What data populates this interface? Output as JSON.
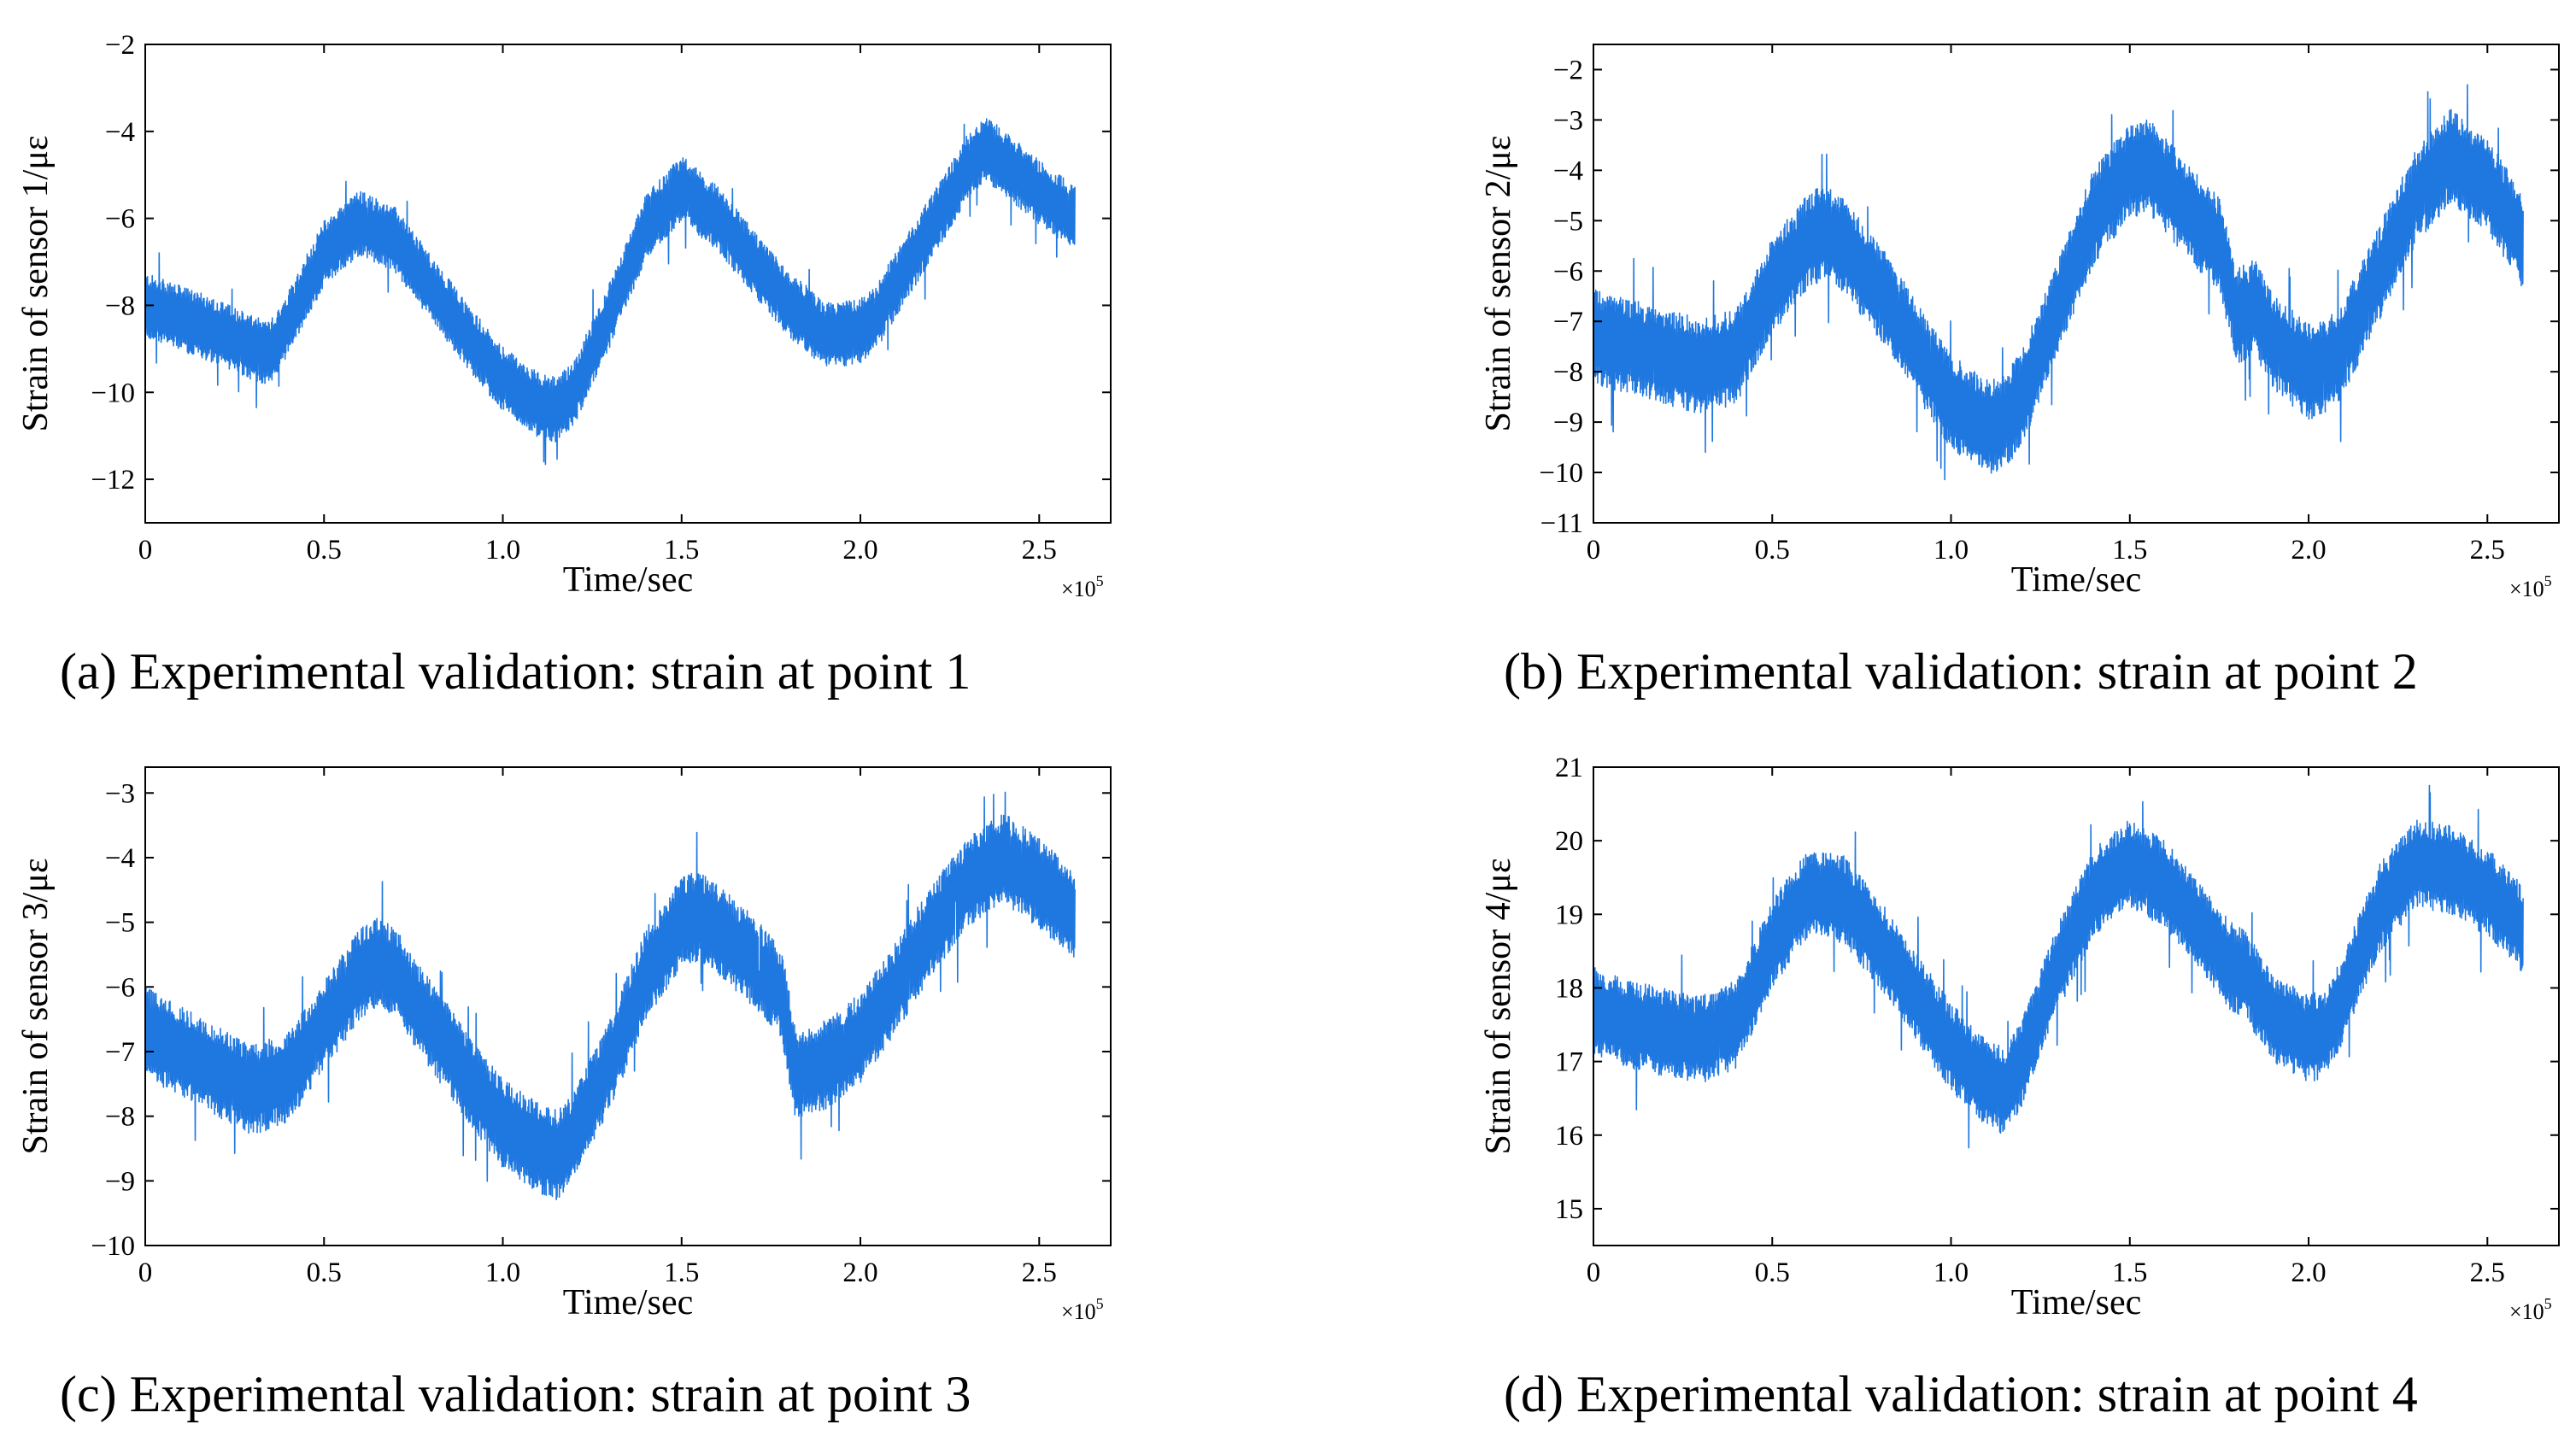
{
  "colors": {
    "series": "#1f77e0",
    "axes": "#000000"
  },
  "x_multiplier": {
    "base": "×10",
    "power": "5"
  },
  "chart_data": [
    {
      "type": "line",
      "id": "a",
      "caption": "(a) Experimental validation: strain at point 1",
      "xlabel": "Time/sec",
      "ylabel": "Strain of sensor 1/με",
      "xlim": [
        0,
        2.7
      ],
      "ylim": [
        -13,
        -2
      ],
      "xticks": [
        0,
        0.5,
        1.0,
        1.5,
        2.0,
        2.5
      ],
      "xtick_labels": [
        "0",
        "0.5",
        "1.0",
        "1.5",
        "2.0",
        "2.5"
      ],
      "yticks": [
        -12,
        -10,
        -8,
        -6,
        -4,
        -2
      ],
      "ytick_labels": [
        "−12",
        "−10",
        "−8",
        "−6",
        "−4",
        "−2"
      ],
      "x_end": 2.6,
      "band_width": 1.5,
      "series": [
        {
          "name": "sensor 1",
          "x": [
            0,
            0.1,
            0.2,
            0.3,
            0.35,
            0.4,
            0.5,
            0.6,
            0.7,
            0.8,
            0.9,
            1.0,
            1.1,
            1.15,
            1.2,
            1.3,
            1.4,
            1.5,
            1.6,
            1.7,
            1.8,
            1.85,
            1.9,
            2.0,
            2.05,
            2.1,
            2.2,
            2.3,
            2.35,
            2.4,
            2.5,
            2.6
          ],
          "y": [
            -8.0,
            -8.3,
            -8.6,
            -9.0,
            -9.1,
            -8.4,
            -6.8,
            -6.1,
            -6.5,
            -7.6,
            -8.7,
            -9.7,
            -10.3,
            -10.4,
            -10.0,
            -8.2,
            -6.2,
            -5.3,
            -6.0,
            -7.0,
            -8.0,
            -8.3,
            -8.7,
            -8.6,
            -8.2,
            -7.5,
            -6.2,
            -4.8,
            -4.4,
            -4.7,
            -5.4,
            -6.0
          ]
        }
      ]
    },
    {
      "type": "line",
      "id": "b",
      "caption": "(b) Experimental validation: strain at point 2",
      "xlabel": "Time/sec",
      "ylabel": "Strain of sensor 2/με",
      "xlim": [
        0,
        2.7
      ],
      "ylim": [
        -11,
        -1.5
      ],
      "xticks": [
        0,
        0.5,
        1.0,
        1.5,
        2.0,
        2.5
      ],
      "xtick_labels": [
        "0",
        "0.5",
        "1.0",
        "1.5",
        "2.0",
        "2.5"
      ],
      "yticks": [
        -11,
        -10,
        -9,
        -8,
        -7,
        -6,
        -5,
        -4,
        -3,
        -2
      ],
      "ytick_labels": [
        "−11",
        "−10",
        "−9",
        "−8",
        "−7",
        "−6",
        "−5",
        "−4",
        "−3",
        "−2"
      ],
      "x_end": 2.6,
      "band_width": 1.9,
      "series": [
        {
          "name": "sensor 2",
          "x": [
            0,
            0.1,
            0.2,
            0.3,
            0.4,
            0.5,
            0.6,
            0.65,
            0.7,
            0.8,
            0.9,
            1.0,
            1.1,
            1.15,
            1.2,
            1.3,
            1.4,
            1.5,
            1.55,
            1.6,
            1.7,
            1.75,
            1.8,
            1.85,
            1.9,
            2.0,
            2.05,
            2.1,
            2.2,
            2.3,
            2.4,
            2.5,
            2.6
          ],
          "y": [
            -7.3,
            -7.5,
            -7.7,
            -7.9,
            -7.7,
            -6.3,
            -5.4,
            -5.2,
            -5.5,
            -6.4,
            -7.5,
            -8.6,
            -9.1,
            -9.0,
            -8.5,
            -6.7,
            -4.9,
            -4.0,
            -3.9,
            -4.3,
            -5.1,
            -5.5,
            -6.9,
            -6.7,
            -7.4,
            -8.0,
            -7.9,
            -7.5,
            -6.0,
            -4.5,
            -3.7,
            -4.3,
            -5.4
          ]
        }
      ]
    },
    {
      "type": "line",
      "id": "c",
      "caption": "(c) Experimental validation: strain at point 3",
      "xlabel": "Time/sec",
      "ylabel": "Strain of sensor 3/με",
      "xlim": [
        0,
        2.7
      ],
      "ylim": [
        -10,
        -2.6
      ],
      "xticks": [
        0,
        0.5,
        1.0,
        1.5,
        2.0,
        2.5
      ],
      "xtick_labels": [
        "0",
        "0.5",
        "1.0",
        "1.5",
        "2.0",
        "2.5"
      ],
      "yticks": [
        -10,
        -9,
        -8,
        -7,
        -6,
        -5,
        -4,
        -3
      ],
      "ytick_labels": [
        "−10",
        "−9",
        "−8",
        "−7",
        "−6",
        "−5",
        "−4",
        "−3"
      ],
      "x_end": 2.6,
      "band_width": 1.4,
      "series": [
        {
          "name": "sensor 3",
          "x": [
            0,
            0.1,
            0.2,
            0.3,
            0.4,
            0.5,
            0.6,
            0.65,
            0.7,
            0.8,
            0.9,
            1.0,
            1.1,
            1.15,
            1.2,
            1.3,
            1.4,
            1.5,
            1.55,
            1.6,
            1.7,
            1.78,
            1.82,
            1.9,
            2.0,
            2.1,
            2.2,
            2.3,
            2.4,
            2.5,
            2.6
          ],
          "y": [
            -6.7,
            -7.0,
            -7.3,
            -7.6,
            -7.4,
            -6.6,
            -5.8,
            -5.6,
            -5.8,
            -6.6,
            -7.4,
            -8.1,
            -8.5,
            -8.6,
            -8.3,
            -7.2,
            -5.8,
            -5.0,
            -4.9,
            -5.1,
            -5.6,
            -6.1,
            -7.4,
            -7.2,
            -6.8,
            -6.0,
            -5.1,
            -4.4,
            -4.0,
            -4.4,
            -4.9
          ]
        }
      ]
    },
    {
      "type": "line",
      "id": "d",
      "caption": "(d) Experimental validation: strain at point 4",
      "xlabel": "Time/sec",
      "ylabel": "Strain of sensor 4/με",
      "xlim": [
        0,
        2.7
      ],
      "ylim": [
        14.5,
        21
      ],
      "xticks": [
        0,
        0.5,
        1.0,
        1.5,
        2.0,
        2.5
      ],
      "xtick_labels": [
        "0",
        "0.5",
        "1.0",
        "1.5",
        "2.0",
        "2.5"
      ],
      "yticks": [
        15,
        16,
        17,
        18,
        19,
        20,
        21
      ],
      "ytick_labels": [
        "15",
        "16",
        "17",
        "18",
        "19",
        "20",
        "21"
      ],
      "x_end": 2.6,
      "band_width": 1.2,
      "series": [
        {
          "name": "sensor 4",
          "x": [
            0,
            0.1,
            0.2,
            0.3,
            0.4,
            0.5,
            0.6,
            0.7,
            0.8,
            0.9,
            1.0,
            1.1,
            1.15,
            1.2,
            1.3,
            1.4,
            1.5,
            1.6,
            1.7,
            1.78,
            1.82,
            1.9,
            2.0,
            2.05,
            2.1,
            2.2,
            2.3,
            2.4,
            2.5,
            2.6
          ],
          "y": [
            17.7,
            17.5,
            17.4,
            17.3,
            17.5,
            18.6,
            19.3,
            19.2,
            18.6,
            17.9,
            17.2,
            16.7,
            16.6,
            17.0,
            18.3,
            19.3,
            19.7,
            19.4,
            18.8,
            18.3,
            18.2,
            17.6,
            17.3,
            17.4,
            17.9,
            19.1,
            19.7,
            19.6,
            19.3,
            18.8
          ]
        }
      ]
    }
  ]
}
